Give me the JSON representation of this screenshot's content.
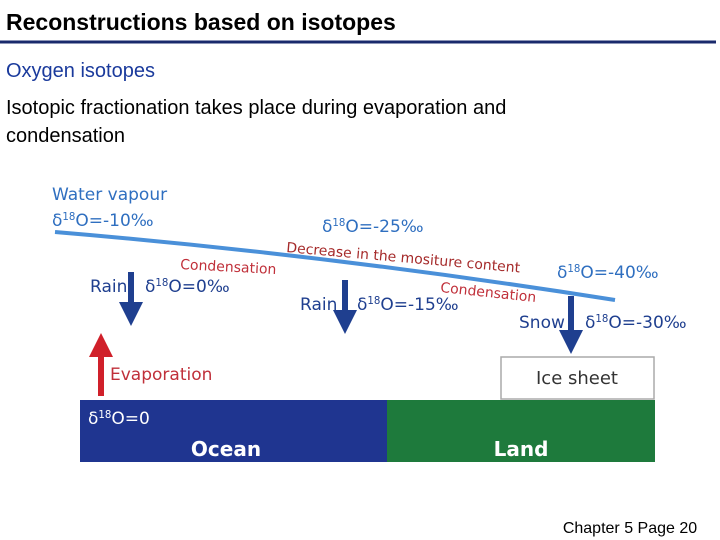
{
  "header": {
    "title": "Reconstructions based on isotopes"
  },
  "subtitle": "Oxygen isotopes",
  "body": [
    "Isotopic fractionation takes place during evaporation and",
    "condensation"
  ],
  "diagram": {
    "water_vapour": "Water vapour",
    "vapour_start": {
      "symbol": "δ",
      "mass": "18",
      "text": "O=-10‰"
    },
    "vapour_middle": {
      "symbol": "δ",
      "mass": "18",
      "text": "O=-25‰"
    },
    "vapour_end": {
      "symbol": "δ",
      "mass": "18",
      "text": "O=-40‰"
    },
    "moisture": "Decrease in the mositure content",
    "condensation_1": "Condensation",
    "condensation_2": "Condensation",
    "rain_1": {
      "label": "Rain",
      "symbol": "δ",
      "mass": "18",
      "text": "O=0‰"
    },
    "rain_2": {
      "label": "Rain",
      "symbol": "δ",
      "mass": "18",
      "text": "O=-15‰"
    },
    "snow": {
      "label": "Snow",
      "symbol": "δ",
      "mass": "18",
      "text": "O=-30‰"
    },
    "evaporation": "Evaporation",
    "ice_sheet": "Ice sheet",
    "ocean_value": {
      "symbol": "δ",
      "mass": "18",
      "text": "O=0"
    },
    "ocean": "Ocean",
    "land": "Land"
  },
  "footer": "Chapter 5 Page 20"
}
